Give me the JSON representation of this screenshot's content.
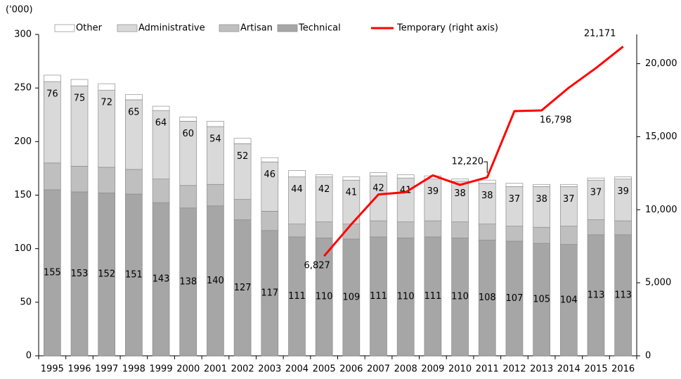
{
  "chart_data": {
    "type": "bar",
    "axis_label": "('000)",
    "categories": [
      "1995",
      "1996",
      "1997",
      "1998",
      "1999",
      "2000",
      "2001",
      "2002",
      "2003",
      "2004",
      "2005",
      "2006",
      "2007",
      "2008",
      "2009",
      "2010",
      "2011",
      "2012",
      "2013",
      "2014",
      "2015",
      "2016"
    ],
    "series": [
      {
        "name": "Technical",
        "color": "#a6a6a6",
        "values": [
          155,
          153,
          152,
          151,
          143,
          138,
          140,
          127,
          117,
          111,
          110,
          109,
          111,
          110,
          111,
          110,
          108,
          107,
          105,
          104,
          113,
          113
        ]
      },
      {
        "name": "Artisan",
        "color": "#bfbfbf",
        "values": [
          25,
          24,
          24,
          23,
          22,
          21,
          20,
          19,
          18,
          12,
          15,
          14,
          15,
          15,
          15,
          15,
          15,
          14,
          15,
          17,
          14,
          13
        ]
      },
      {
        "name": "Administrative",
        "color": "#d9d9d9",
        "values": [
          76,
          75,
          72,
          65,
          64,
          60,
          54,
          52,
          46,
          44,
          42,
          41,
          42,
          41,
          39,
          38,
          38,
          37,
          38,
          37,
          37,
          39
        ]
      },
      {
        "name": "Other",
        "color": "#ffffff",
        "values": [
          6,
          6,
          6,
          5,
          4,
          4,
          5,
          5,
          4,
          6,
          2,
          3,
          3,
          3,
          3,
          2,
          3,
          3,
          2,
          2,
          2,
          2
        ]
      },
      {
        "name": "Temporary (right axis)",
        "color": "#ff0000",
        "type": "line",
        "axis": "y2",
        "values": [
          null,
          null,
          null,
          null,
          null,
          null,
          null,
          null,
          null,
          null,
          6827,
          9000,
          11050,
          11200,
          12350,
          11700,
          12220,
          16750,
          16798,
          18350,
          19700,
          21171
        ],
        "value_labels": [
          null,
          null,
          null,
          null,
          null,
          null,
          null,
          null,
          null,
          null,
          "6,827",
          null,
          null,
          null,
          null,
          null,
          "12,220",
          null,
          "16,798",
          null,
          null,
          "21,171"
        ]
      }
    ],
    "labeled_series": [
      0,
      2
    ],
    "legend_order": [
      3,
      2,
      1,
      0,
      4
    ],
    "ylim": [
      0,
      300
    ],
    "yticks": [
      0,
      50,
      100,
      150,
      200,
      250,
      300
    ],
    "y2lim": [
      0,
      22000
    ],
    "y2ticks": [
      0,
      {
        "value": 5000,
        "label": "5,000"
      },
      {
        "value": 10000,
        "label": "10,000"
      },
      {
        "value": 15000,
        "label": "15,000"
      },
      {
        "value": 20000,
        "label": "20,000"
      }
    ],
    "grid": false
  }
}
